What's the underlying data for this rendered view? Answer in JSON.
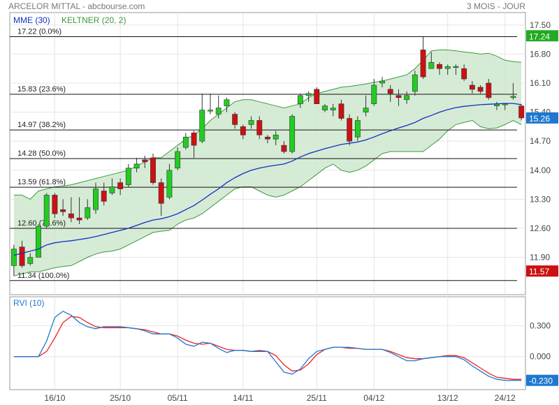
{
  "header": {
    "title": "ARCELOR MITTAL - abcbourse.com",
    "period": "3 MOIS - JOUR"
  },
  "colors": {
    "mme": "#1030c0",
    "keltner": "#3a9a3a",
    "keltner_fill": "#cfe8cf",
    "up": "#22cc22",
    "down": "#cc1111",
    "rvi": "#1f77d0",
    "rvi_signal": "#ee2222",
    "last_price_bg": "#22aa22",
    "low_price_bg": "#cc1111",
    "rvi_tag_bg": "#1f77d0"
  },
  "chart_data": [
    {
      "type": "candlestick",
      "legend": [
        {
          "label": "MME (30)",
          "color": "#1030c0"
        },
        {
          "label": "KELTNER (20, 2)",
          "color": "#3a9a3a"
        }
      ],
      "ylim": [
        11.0,
        17.8
      ],
      "y_ticks": [
        "17.50",
        "16.80",
        "16.10",
        "15.40",
        "14.70",
        "14.00",
        "13.30",
        "12.60",
        "11.90"
      ],
      "x_ticks": [
        "16/10",
        "25/10",
        "05/11",
        "14/11",
        "25/11",
        "04/12",
        "13/12",
        "24/12"
      ],
      "fibonacci": [
        {
          "value": 17.22,
          "label": "17.22  (0.0%)"
        },
        {
          "value": 15.83,
          "label": "15.83  (23.6%)"
        },
        {
          "value": 14.97,
          "label": "14.97  (38.2%)"
        },
        {
          "value": 14.28,
          "label": "14.28  (50.0%)"
        },
        {
          "value": 13.59,
          "label": "13.59  (61.8%)"
        },
        {
          "value": 12.6,
          "label": "12.60  (78.6%)"
        },
        {
          "value": 11.34,
          "label": "11.34  (100.0%)"
        }
      ],
      "price_tags": {
        "high": "17.24",
        "last": "15.26",
        "low": "11.57"
      },
      "candles": [
        {
          "o": 11.7,
          "h": 12.2,
          "l": 11.45,
          "c": 12.1
        },
        {
          "o": 12.15,
          "h": 12.3,
          "l": 11.65,
          "c": 11.7
        },
        {
          "o": 11.75,
          "h": 12.0,
          "l": 11.7,
          "c": 11.9
        },
        {
          "o": 11.9,
          "h": 12.7,
          "l": 11.9,
          "c": 12.65
        },
        {
          "o": 12.65,
          "h": 13.45,
          "l": 12.6,
          "c": 13.4
        },
        {
          "o": 13.4,
          "h": 13.45,
          "l": 12.85,
          "c": 12.95
        },
        {
          "o": 13.05,
          "h": 13.3,
          "l": 12.9,
          "c": 13.0
        },
        {
          "o": 12.95,
          "h": 13.35,
          "l": 12.75,
          "c": 12.85
        },
        {
          "o": 12.85,
          "h": 13.35,
          "l": 12.7,
          "c": 12.8
        },
        {
          "o": 12.85,
          "h": 13.3,
          "l": 12.8,
          "c": 13.1
        },
        {
          "o": 13.05,
          "h": 13.7,
          "l": 12.95,
          "c": 13.55
        },
        {
          "o": 13.5,
          "h": 13.7,
          "l": 13.15,
          "c": 13.25
        },
        {
          "o": 13.45,
          "h": 13.8,
          "l": 13.4,
          "c": 13.6
        },
        {
          "o": 13.7,
          "h": 13.8,
          "l": 13.4,
          "c": 13.55
        },
        {
          "o": 13.65,
          "h": 14.15,
          "l": 13.6,
          "c": 14.05
        },
        {
          "o": 14.05,
          "h": 14.3,
          "l": 13.95,
          "c": 14.15
        },
        {
          "o": 14.25,
          "h": 14.35,
          "l": 14.05,
          "c": 14.2
        },
        {
          "o": 14.3,
          "h": 14.4,
          "l": 13.65,
          "c": 13.7
        },
        {
          "o": 13.7,
          "h": 13.8,
          "l": 12.9,
          "c": 13.2
        },
        {
          "o": 13.35,
          "h": 14.15,
          "l": 13.3,
          "c": 14.0
        },
        {
          "o": 14.05,
          "h": 14.55,
          "l": 14.0,
          "c": 14.45
        },
        {
          "o": 14.55,
          "h": 14.9,
          "l": 14.5,
          "c": 14.8
        },
        {
          "o": 14.9,
          "h": 14.95,
          "l": 14.3,
          "c": 14.6
        },
        {
          "o": 14.7,
          "h": 15.85,
          "l": 14.65,
          "c": 15.45
        },
        {
          "o": 15.45,
          "h": 15.85,
          "l": 15.35,
          "c": 15.45
        },
        {
          "o": 15.35,
          "h": 15.8,
          "l": 15.25,
          "c": 15.5
        },
        {
          "o": 15.55,
          "h": 15.75,
          "l": 15.4,
          "c": 15.7
        },
        {
          "o": 15.35,
          "h": 15.4,
          "l": 15.0,
          "c": 15.1
        },
        {
          "o": 15.05,
          "h": 15.1,
          "l": 14.75,
          "c": 14.85
        },
        {
          "o": 15.1,
          "h": 15.3,
          "l": 15.0,
          "c": 15.2
        },
        {
          "o": 15.2,
          "h": 15.3,
          "l": 14.75,
          "c": 14.85
        },
        {
          "o": 14.8,
          "h": 14.85,
          "l": 14.65,
          "c": 14.75
        },
        {
          "o": 14.75,
          "h": 14.95,
          "l": 14.6,
          "c": 14.85
        },
        {
          "o": 14.6,
          "h": 14.7,
          "l": 14.4,
          "c": 14.45
        },
        {
          "o": 14.45,
          "h": 15.35,
          "l": 14.4,
          "c": 15.3
        },
        {
          "o": 15.6,
          "h": 15.85,
          "l": 15.5,
          "c": 15.8
        },
        {
          "o": 15.8,
          "h": 15.9,
          "l": 15.65,
          "c": 15.85
        },
        {
          "o": 15.95,
          "h": 16.0,
          "l": 15.6,
          "c": 15.6
        },
        {
          "o": 15.45,
          "h": 15.6,
          "l": 15.4,
          "c": 15.55
        },
        {
          "o": 15.45,
          "h": 15.6,
          "l": 15.3,
          "c": 15.5
        },
        {
          "o": 15.6,
          "h": 15.7,
          "l": 15.2,
          "c": 15.25
        },
        {
          "o": 15.25,
          "h": 15.35,
          "l": 14.6,
          "c": 14.7
        },
        {
          "o": 14.8,
          "h": 15.3,
          "l": 14.7,
          "c": 15.2
        },
        {
          "o": 15.4,
          "h": 15.8,
          "l": 15.3,
          "c": 15.5
        },
        {
          "o": 15.6,
          "h": 16.2,
          "l": 15.55,
          "c": 16.05
        },
        {
          "o": 16.1,
          "h": 16.25,
          "l": 16.0,
          "c": 16.15
        },
        {
          "o": 15.95,
          "h": 16.05,
          "l": 15.65,
          "c": 15.85
        },
        {
          "o": 15.8,
          "h": 15.95,
          "l": 15.55,
          "c": 15.75
        },
        {
          "o": 15.7,
          "h": 15.9,
          "l": 15.6,
          "c": 15.8
        },
        {
          "o": 15.9,
          "h": 16.4,
          "l": 15.8,
          "c": 16.3
        },
        {
          "o": 16.9,
          "h": 17.22,
          "l": 16.2,
          "c": 16.25
        },
        {
          "o": 16.45,
          "h": 16.85,
          "l": 16.45,
          "c": 16.6
        },
        {
          "o": 16.55,
          "h": 16.6,
          "l": 16.3,
          "c": 16.45
        },
        {
          "o": 16.45,
          "h": 16.55,
          "l": 16.3,
          "c": 16.5
        },
        {
          "o": 16.5,
          "h": 16.55,
          "l": 16.3,
          "c": 16.5
        },
        {
          "o": 16.45,
          "h": 16.55,
          "l": 16.15,
          "c": 16.2
        },
        {
          "o": 16.05,
          "h": 16.15,
          "l": 15.85,
          "c": 15.95
        },
        {
          "o": 16.0,
          "h": 16.05,
          "l": 15.85,
          "c": 15.9
        },
        {
          "o": 16.1,
          "h": 16.2,
          "l": 15.7,
          "c": 15.75
        },
        {
          "o": 15.55,
          "h": 15.65,
          "l": 15.45,
          "c": 15.6
        },
        {
          "o": 15.58,
          "h": 15.62,
          "l": 15.45,
          "c": 15.6
        },
        {
          "o": 15.75,
          "h": 16.1,
          "l": 15.7,
          "c": 15.78
        },
        {
          "o": 15.55,
          "h": 15.6,
          "l": 15.2,
          "c": 15.26
        }
      ],
      "mme": [
        11.95,
        12.0,
        12.05,
        12.1,
        12.2,
        12.25,
        12.28,
        12.3,
        12.33,
        12.36,
        12.4,
        12.45,
        12.5,
        12.55,
        12.6,
        12.67,
        12.74,
        12.8,
        12.83,
        12.88,
        12.95,
        13.05,
        13.15,
        13.28,
        13.42,
        13.55,
        13.7,
        13.82,
        13.92,
        14.0,
        14.05,
        14.09,
        14.12,
        14.15,
        14.22,
        14.32,
        14.4,
        14.46,
        14.52,
        14.57,
        14.62,
        14.65,
        14.68,
        14.73,
        14.8,
        14.88,
        14.95,
        15.02,
        15.08,
        15.15,
        15.25,
        15.32,
        15.4,
        15.46,
        15.51,
        15.54,
        15.56,
        15.58,
        15.59,
        15.6,
        15.61,
        15.61,
        15.58
      ],
      "keltner_upper": [
        13.4,
        13.4,
        13.3,
        13.5,
        13.55,
        13.6,
        13.62,
        13.65,
        13.7,
        13.75,
        13.8,
        13.85,
        13.9,
        13.95,
        14.0,
        14.1,
        14.2,
        14.3,
        14.3,
        14.45,
        14.6,
        14.75,
        14.85,
        15.0,
        15.2,
        15.35,
        15.5,
        15.65,
        15.7,
        15.7,
        15.65,
        15.6,
        15.55,
        15.5,
        15.55,
        15.6,
        15.75,
        15.85,
        15.9,
        15.95,
        16.0,
        16.02,
        16.05,
        16.08,
        16.12,
        16.15,
        16.2,
        16.25,
        16.3,
        16.45,
        16.65,
        16.88,
        16.9,
        16.9,
        16.88,
        16.85,
        16.83,
        16.8,
        16.82,
        16.75,
        16.65,
        16.62,
        16.6
      ],
      "keltner_lower": [
        11.45,
        11.5,
        11.55,
        11.55,
        11.6,
        11.65,
        11.68,
        11.7,
        11.8,
        11.9,
        11.98,
        12.03,
        12.05,
        12.1,
        12.2,
        12.3,
        12.4,
        12.5,
        12.53,
        12.55,
        12.7,
        12.8,
        12.85,
        12.95,
        13.1,
        13.25,
        13.4,
        13.55,
        13.6,
        13.6,
        13.5,
        13.4,
        13.35,
        13.4,
        13.5,
        13.6,
        13.75,
        13.9,
        14.05,
        14.15,
        14.0,
        13.95,
        14.0,
        14.1,
        14.25,
        14.4,
        14.45,
        14.45,
        14.45,
        14.45,
        14.45,
        14.6,
        14.75,
        14.95,
        15.1,
        15.15,
        15.2,
        15.05,
        15.0,
        15.02,
        15.1,
        15.2,
        15.1
      ]
    },
    {
      "type": "line",
      "legend": [
        {
          "label": "RVI (10)",
          "color": "#1f77d0"
        }
      ],
      "ylim": [
        -0.32,
        0.58
      ],
      "y_ticks": [
        "0.300",
        "0.000"
      ],
      "last_value_tag": "-0.230",
      "series": [
        {
          "name": "RVI (10)",
          "values": [
            0.0,
            0.0,
            0.0,
            0.0,
            0.15,
            0.38,
            0.44,
            0.4,
            0.33,
            0.29,
            0.27,
            0.29,
            0.29,
            0.29,
            0.28,
            0.27,
            0.25,
            0.22,
            0.22,
            0.22,
            0.18,
            0.12,
            0.1,
            0.14,
            0.13,
            0.08,
            0.04,
            0.06,
            0.06,
            0.05,
            0.06,
            0.05,
            -0.05,
            -0.15,
            -0.17,
            -0.12,
            -0.02,
            0.05,
            0.07,
            0.09,
            0.09,
            0.09,
            0.08,
            0.07,
            0.07,
            0.07,
            0.04,
            0.0,
            -0.04,
            -0.04,
            -0.02,
            -0.01,
            0.0,
            0.0,
            0.0,
            -0.03,
            -0.09,
            -0.14,
            -0.19,
            -0.22,
            -0.23,
            -0.23,
            -0.23
          ]
        },
        {
          "name": "",
          "values": [
            0.0,
            0.0,
            0.0,
            0.0,
            0.05,
            0.18,
            0.33,
            0.39,
            0.38,
            0.33,
            0.29,
            0.28,
            0.28,
            0.28,
            0.28,
            0.27,
            0.26,
            0.24,
            0.22,
            0.22,
            0.2,
            0.16,
            0.13,
            0.12,
            0.13,
            0.1,
            0.07,
            0.06,
            0.06,
            0.05,
            0.05,
            0.05,
            0.01,
            -0.08,
            -0.14,
            -0.13,
            -0.07,
            0.02,
            0.07,
            0.09,
            0.09,
            0.08,
            0.08,
            0.07,
            0.07,
            0.07,
            0.05,
            0.02,
            -0.01,
            -0.02,
            -0.02,
            -0.01,
            0.0,
            0.01,
            0.01,
            -0.01,
            -0.06,
            -0.11,
            -0.16,
            -0.2,
            -0.21,
            -0.22,
            -0.22
          ]
        }
      ]
    }
  ]
}
